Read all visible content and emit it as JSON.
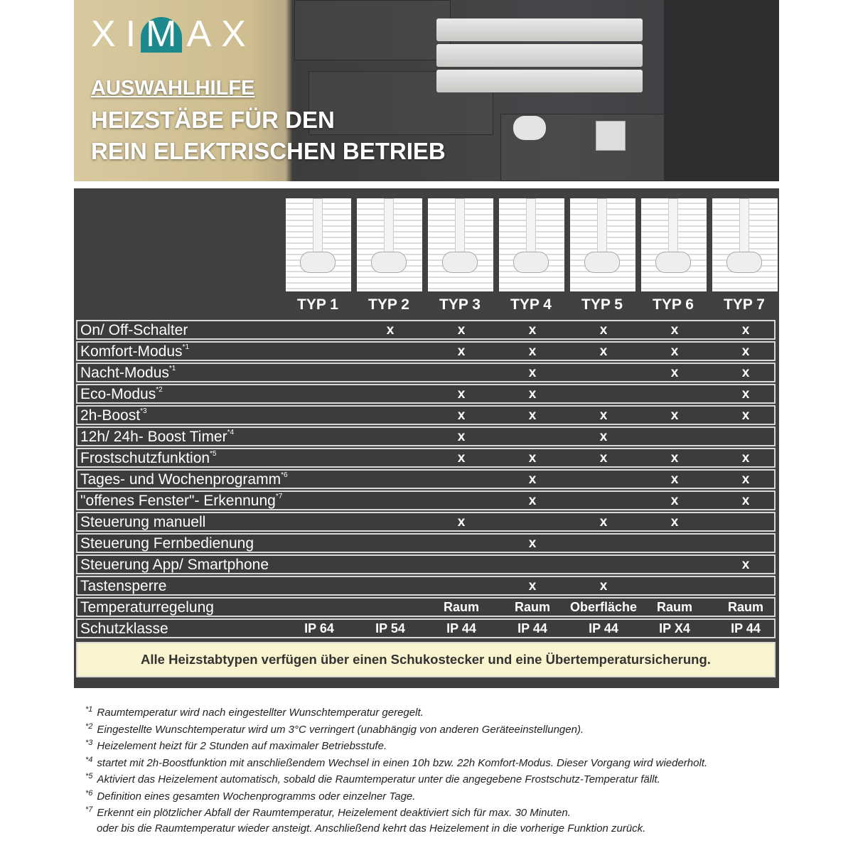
{
  "header": {
    "brand": "XIMAX",
    "subtitle": "AUSWAHLHILFE",
    "title_line1": "HEIZSTÄBE FÜR DEN",
    "title_line2": "REIN ELEKTRISCHEN BETRIEB",
    "accent": "#1c8a8c"
  },
  "table": {
    "types": [
      "TYP 1",
      "TYP 2",
      "TYP 3",
      "TYP 4",
      "TYP 5",
      "TYP 6",
      "TYP 7"
    ],
    "rows": [
      {
        "label": "On/ Off-Schalter",
        "sup": "",
        "cells": [
          "",
          "x",
          "x",
          "x",
          "x",
          "x",
          "x"
        ]
      },
      {
        "label": "Komfort-Modus",
        "sup": "*1",
        "cells": [
          "",
          "",
          "x",
          "x",
          "x",
          "x",
          "x"
        ]
      },
      {
        "label": "Nacht-Modus",
        "sup": "*1",
        "cells": [
          "",
          "",
          "",
          "x",
          "",
          "x",
          "x"
        ]
      },
      {
        "label": "Eco-Modus",
        "sup": "*2",
        "cells": [
          "",
          "",
          "x",
          "x",
          "",
          "",
          "x"
        ]
      },
      {
        "label": "2h-Boost",
        "sup": "*3",
        "cells": [
          "",
          "",
          "x",
          "x",
          "x",
          "x",
          "x"
        ]
      },
      {
        "label": "12h/ 24h- Boost Timer",
        "sup": "*4",
        "cells": [
          "",
          "",
          "x",
          "",
          "x",
          "",
          ""
        ]
      },
      {
        "label": "Frostschutzfunktion",
        "sup": "*5",
        "cells": [
          "",
          "",
          "x",
          "x",
          "x",
          "x",
          "x"
        ]
      },
      {
        "label": "Tages- und Wochenprogramm",
        "sup": "*6",
        "cells": [
          "",
          "",
          "",
          "x",
          "",
          "x",
          "x"
        ]
      },
      {
        "label": "\"offenes Fenster\"- Erkennung",
        "sup": "*7",
        "cells": [
          "",
          "",
          "",
          "x",
          "",
          "x",
          "x"
        ]
      },
      {
        "label": "Steuerung manuell",
        "sup": "",
        "cells": [
          "",
          "",
          "x",
          "",
          "x",
          "x",
          ""
        ]
      },
      {
        "label": "Steuerung Fernbedienung",
        "sup": "",
        "cells": [
          "",
          "",
          "",
          "x",
          "",
          "",
          ""
        ]
      },
      {
        "label": "Steuerung App/ Smartphone",
        "sup": "",
        "cells": [
          "",
          "",
          "",
          "",
          "",
          "",
          "x"
        ]
      },
      {
        "label": "Tastensperre",
        "sup": "",
        "cells": [
          "",
          "",
          "",
          "x",
          "x",
          "",
          ""
        ]
      },
      {
        "label": "Temperaturregelung",
        "sup": "",
        "cells": [
          "",
          "",
          "Raum",
          "Raum",
          "Oberfläche",
          "Raum",
          "Raum"
        ]
      },
      {
        "label": "Schutzklasse",
        "sup": "",
        "cells": [
          "IP 64",
          "IP 54",
          "IP 44",
          "IP 44",
          "IP 44",
          "IP X4",
          "IP 44"
        ]
      }
    ],
    "note": "Alle Heizstabtypen verfügen über einen Schukostecker und eine Übertemperatursicherung."
  },
  "footnotes": [
    {
      "mark": "*1",
      "text": "Raumtemperatur wird nach eingestellter Wunschtemperatur geregelt."
    },
    {
      "mark": "*2",
      "text": "Eingestellte Wunschtemperatur wird um 3°C verringert (unabhängig von anderen Geräteeinstellungen)."
    },
    {
      "mark": "*3",
      "text": "Heizelement heizt für 2 Stunden auf maximaler Betriebsstufe."
    },
    {
      "mark": "*4",
      "text": "startet mit 2h-Boostfunktion mit anschließendem Wechsel in einen 10h bzw. 22h Komfort-Modus. Dieser Vorgang wird wiederholt."
    },
    {
      "mark": "*5",
      "text": "Aktiviert das Heizelement automatisch, sobald die Raumtemperatur unter die angegebene Frostschutz-Temperatur fällt."
    },
    {
      "mark": "*6",
      "text": "Definition eines gesamten Wochenprogramms oder einzelner Tage."
    },
    {
      "mark": "*7",
      "text": "Erkennt ein plötzlicher Abfall der Raumtemperatur, Heizelement deaktiviert sich für max. 30 Minuten."
    }
  ],
  "footnote_continuation": "oder bis die Raumtemperatur wieder ansteigt. Anschließend kehrt das Heizelement in die vorherige Funktion zurück."
}
